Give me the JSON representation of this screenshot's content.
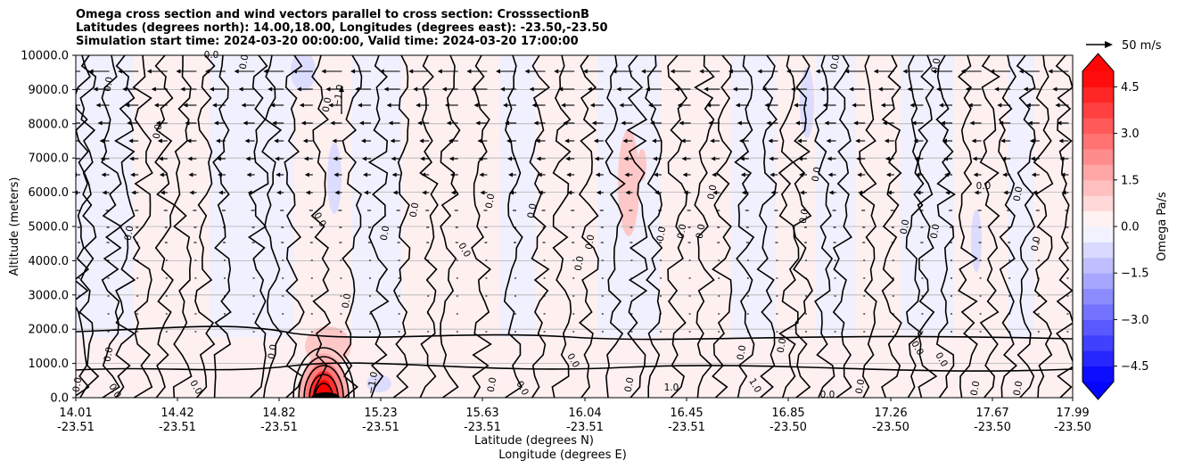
{
  "figure": {
    "title_lines": [
      "Omega cross section and wind vectors parallel to cross section: CrosssectionB",
      "Latitudes (degrees north): 14.00,18.00, Longitudes (degrees east): -23.50,-23.50",
      "Simulation start time: 2024-03-20 00:00:00, Valid time: 2024-03-20 17:00:00"
    ]
  },
  "chart_data": {
    "type": "heatmap",
    "title": "Omega cross section and wind vectors parallel to cross section: CrosssectionB",
    "ylabel": "Altitude (meters)",
    "xlabel_lines": [
      "Latitude (degrees N)",
      "Longitude (degrees E)"
    ],
    "ylim": [
      0,
      10000
    ],
    "y_ticks": [
      "0.0",
      "1000.0",
      "2000.0",
      "3000.0",
      "4000.0",
      "5000.0",
      "6000.0",
      "7000.0",
      "8000.0",
      "9000.0",
      "10000.0"
    ],
    "x_ticks": [
      {
        "lat": "14.01",
        "lon": "-23.51"
      },
      {
        "lat": "14.42",
        "lon": "-23.51"
      },
      {
        "lat": "14.82",
        "lon": "-23.51"
      },
      {
        "lat": "15.23",
        "lon": "-23.51"
      },
      {
        "lat": "15.63",
        "lon": "-23.51"
      },
      {
        "lat": "16.04",
        "lon": "-23.51"
      },
      {
        "lat": "16.45",
        "lon": "-23.51"
      },
      {
        "lat": "16.85",
        "lon": "-23.50"
      },
      {
        "lat": "17.26",
        "lon": "-23.50"
      },
      {
        "lat": "17.67",
        "lon": "-23.50"
      },
      {
        "lat": "17.99",
        "lon": "-23.50"
      }
    ],
    "grid": true,
    "colorbar": {
      "label": "Omega Pa/s",
      "range": [
        -5.0,
        5.0
      ],
      "ticks": [
        "4.5",
        "3.0",
        "1.5",
        "0.0",
        "−1.5",
        "−3.0",
        "−4.5"
      ],
      "tick_values": [
        4.5,
        3.0,
        1.5,
        0.0,
        -1.5,
        -3.0,
        -4.5
      ],
      "extend": "both",
      "colormap": "bwr",
      "min_color": "#0000ff",
      "mid_color": "#ffffff",
      "max_color": "#ff0000"
    },
    "vector_key": {
      "label": "50 m/s",
      "speed": 50
    },
    "contour_labels": [
      "0.0",
      "−1.0",
      "1.0"
    ],
    "strong_ascent_feature": {
      "lat": 15.0,
      "altitude_top": 1000,
      "sign": "positive"
    }
  }
}
